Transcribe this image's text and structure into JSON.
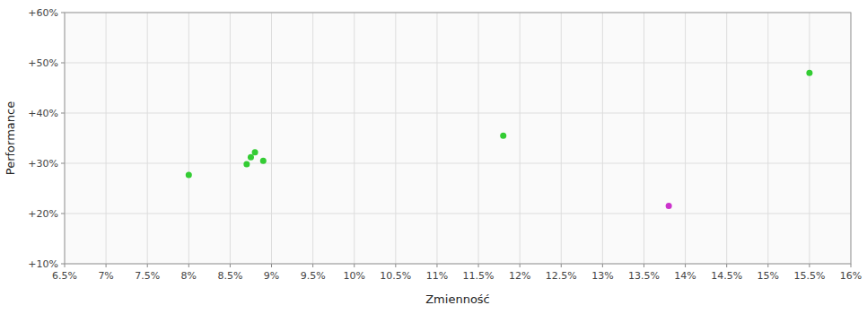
{
  "chart_data": {
    "type": "scatter",
    "xlabel": "Zmienność",
    "ylabel": "Performance",
    "xlim": [
      0.065,
      0.16
    ],
    "ylim": [
      0.1,
      0.6
    ],
    "xticks": [
      {
        "value": 0.065,
        "label": "6.5%"
      },
      {
        "value": 0.07,
        "label": "7%"
      },
      {
        "value": 0.075,
        "label": "7.5%"
      },
      {
        "value": 0.08,
        "label": "8%"
      },
      {
        "value": 0.085,
        "label": "8.5%"
      },
      {
        "value": 0.09,
        "label": "9%"
      },
      {
        "value": 0.095,
        "label": "9.5%"
      },
      {
        "value": 0.1,
        "label": "10%"
      },
      {
        "value": 0.105,
        "label": "10.5%"
      },
      {
        "value": 0.11,
        "label": "11%"
      },
      {
        "value": 0.115,
        "label": "11.5%"
      },
      {
        "value": 0.12,
        "label": "12%"
      },
      {
        "value": 0.125,
        "label": "12.5%"
      },
      {
        "value": 0.13,
        "label": "13%"
      },
      {
        "value": 0.135,
        "label": "13.5%"
      },
      {
        "value": 0.14,
        "label": "14%"
      },
      {
        "value": 0.145,
        "label": "14.5%"
      },
      {
        "value": 0.15,
        "label": "15%"
      },
      {
        "value": 0.155,
        "label": "15.5%"
      },
      {
        "value": 0.16,
        "label": "16%"
      }
    ],
    "yticks": [
      {
        "value": 0.1,
        "label": "+10%"
      },
      {
        "value": 0.2,
        "label": "+20%"
      },
      {
        "value": 0.3,
        "label": "+30%"
      },
      {
        "value": 0.4,
        "label": "+40%"
      },
      {
        "value": 0.5,
        "label": "+50%"
      },
      {
        "value": 0.6,
        "label": "+60%"
      }
    ],
    "grid": true,
    "series": [
      {
        "color": "#33cc33",
        "x": [
          0.08,
          0.087,
          0.0875,
          0.088,
          0.089,
          0.118,
          0.155
        ],
        "values": [
          0.277,
          0.298,
          0.312,
          0.322,
          0.305,
          0.355,
          0.48
        ]
      },
      {
        "color": "#cc33cc",
        "x": [
          0.138
        ],
        "values": [
          0.215
        ]
      }
    ]
  }
}
